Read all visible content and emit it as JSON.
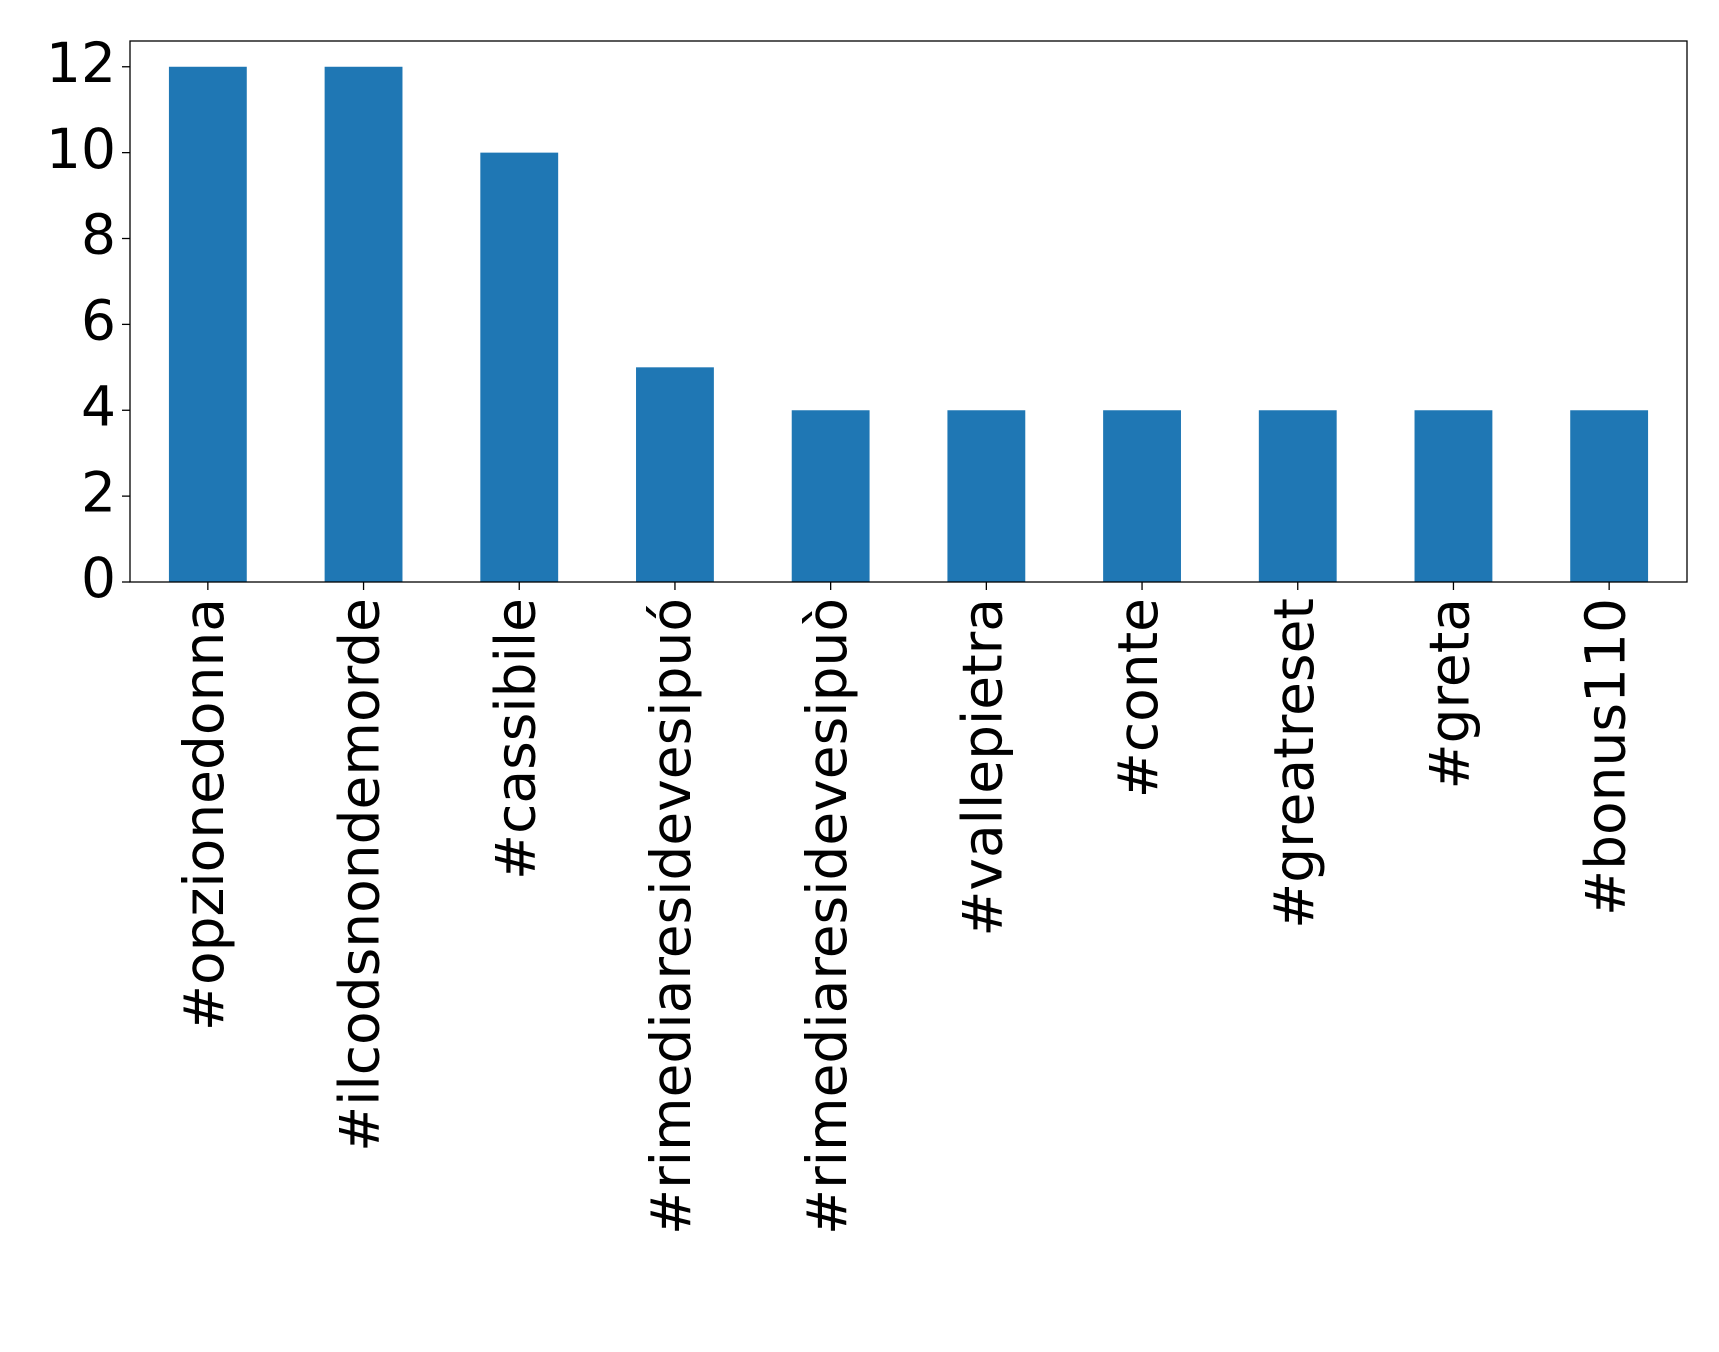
{
  "chart_data": {
    "type": "bar",
    "categories": [
      "#opzionedonna",
      "#ilcodsnondemorde",
      "#cassibile",
      "#rimediaresidevesipuó",
      "#rimediaresidevesipuò",
      "#vallepietra",
      "#conte",
      "#greatreset",
      "#greta",
      "#bonus110"
    ],
    "values": [
      12,
      12,
      10,
      5,
      4,
      4,
      4,
      4,
      4,
      4
    ],
    "color": "#1f77b4",
    "ylim": [
      0,
      12.6
    ],
    "yticks": [
      0,
      2,
      4,
      6,
      8,
      10,
      12
    ],
    "grid": false
  }
}
